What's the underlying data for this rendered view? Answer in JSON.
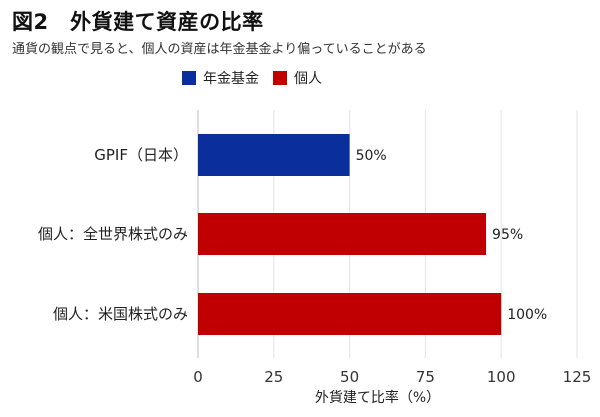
{
  "title": "図2　外貨建て資産の比率",
  "subtitle": "通貨の観点で見ると、個人の資産は年金基金より偏っていることがある",
  "legend": [
    {
      "label": "年金基金",
      "color": "#0a2f9c"
    },
    {
      "label": "個人",
      "color": "#c00000"
    }
  ],
  "chart_data": {
    "type": "bar",
    "orientation": "horizontal",
    "categories": [
      "GPIF（日本）",
      "個人：全世界株式のみ",
      "個人：米国株式のみ"
    ],
    "values": [
      50,
      95,
      100
    ],
    "value_labels": [
      "50%",
      "95%",
      "100%"
    ],
    "bar_series": [
      "年金基金",
      "個人",
      "個人"
    ],
    "bar_colors": [
      "#0a2f9c",
      "#c00000",
      "#c00000"
    ],
    "xlabel": "外貨建て比率（%）",
    "ylabel": "",
    "xlim": [
      0,
      125
    ],
    "xticks": [
      0,
      25,
      50,
      75,
      100,
      125
    ],
    "grid": "vertical",
    "legend_position": "top"
  }
}
